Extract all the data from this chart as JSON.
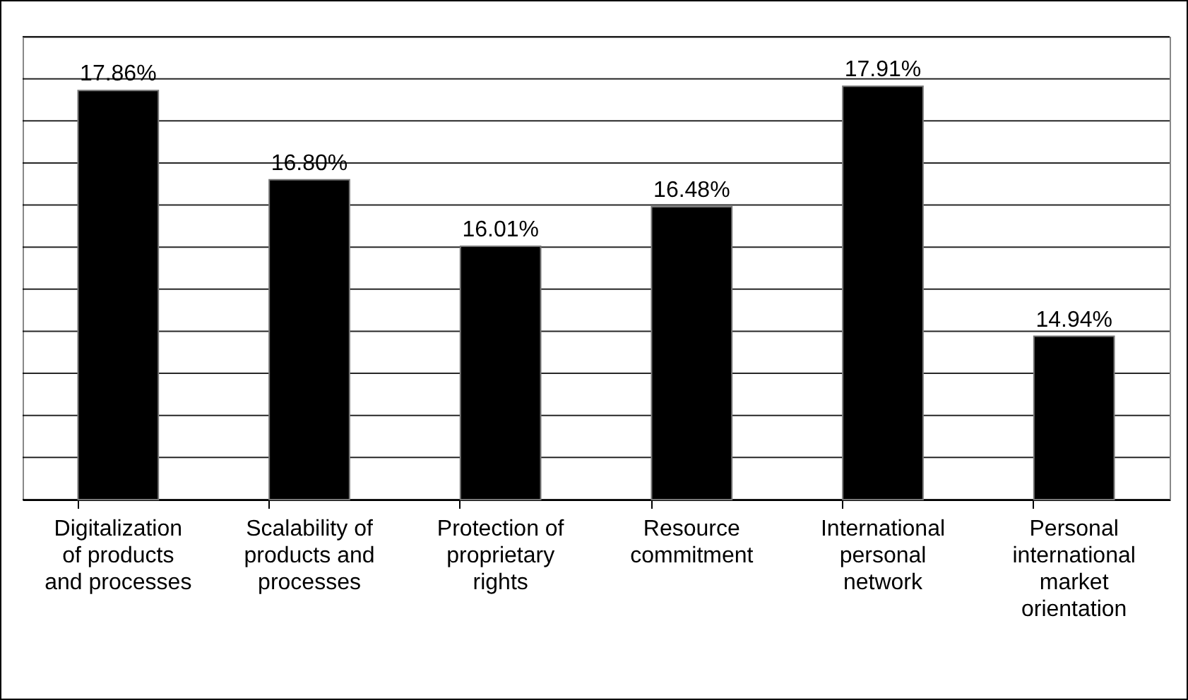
{
  "chart_data": {
    "type": "bar",
    "categories": [
      "Digitalization of products and processes",
      "Scalability of products and processes",
      "Protection of proprietary rights",
      "Resource commitment",
      "International personal network",
      "Personal international market orientation"
    ],
    "values": [
      17.86,
      16.8,
      16.01,
      16.48,
      17.91,
      14.94
    ],
    "value_labels": [
      "17.86%",
      "16.80%",
      "16.01%",
      "16.48%",
      "17.91%",
      "14.94%"
    ],
    "color": "#000000",
    "ylim": [
      13,
      18.5
    ],
    "yticks": [
      {
        "value": 13,
        "label": null
      },
      {
        "value": 13.5,
        "label": null
      },
      {
        "value": 14,
        "label": null
      },
      {
        "value": 14.5,
        "label": null
      },
      {
        "value": 15,
        "label": null
      },
      {
        "value": 15.5,
        "label": null
      },
      {
        "value": 16,
        "label": null
      },
      {
        "value": 16.5,
        "label": null
      },
      {
        "value": 17,
        "label": null
      },
      {
        "value": 17.5,
        "label": null
      },
      {
        "value": 18,
        "label": null
      },
      {
        "value": 18.5,
        "label": null
      }
    ],
    "tick_labels": "x",
    "grid": "y"
  }
}
